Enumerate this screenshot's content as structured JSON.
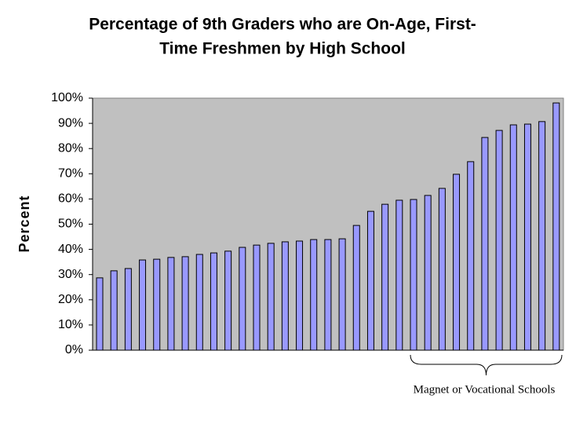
{
  "chart_data": {
    "type": "bar",
    "title": [
      "Percentage of 9th Graders who are On-Age, First-",
      "Time Freshmen by High School"
    ],
    "y_label": "Percent",
    "annotation": "Magnet or Vocational Schools",
    "categories": [
      null,
      null,
      null,
      null,
      null,
      null,
      null,
      null,
      null,
      null,
      null,
      null,
      null,
      null,
      null,
      null,
      null,
      null,
      null,
      null,
      null,
      null,
      null,
      null,
      null,
      null,
      null,
      null,
      null,
      null,
      null,
      null,
      null
    ],
    "values": [
      28.7,
      31.5,
      32.4,
      35.8,
      36.1,
      36.8,
      37.1,
      38.0,
      38.6,
      39.3,
      40.8,
      41.7,
      42.4,
      43.0,
      43.3,
      43.9,
      43.9,
      44.2,
      49.5,
      55.1,
      57.9,
      59.5,
      59.8,
      61.4,
      64.2,
      69.8,
      74.8,
      84.4,
      87.2,
      89.4,
      89.7,
      90.7,
      98.1
    ],
    "color": "#9999ff",
    "plot_background": "#c0c0c0",
    "ylim": [
      0,
      100
    ],
    "yticks": [
      {
        "value": 0,
        "label": "0%"
      },
      {
        "value": 10,
        "label": "10%"
      },
      {
        "value": 20,
        "label": "20%"
      },
      {
        "value": 30,
        "label": "30%"
      },
      {
        "value": 40,
        "label": "40%"
      },
      {
        "value": 50,
        "label": "50%"
      },
      {
        "value": 60,
        "label": "60%"
      },
      {
        "value": 70,
        "label": "70%"
      },
      {
        "value": 80,
        "label": "80%"
      },
      {
        "value": 90,
        "label": "90%"
      },
      {
        "value": 100,
        "label": "100%"
      }
    ],
    "grid": false
  }
}
